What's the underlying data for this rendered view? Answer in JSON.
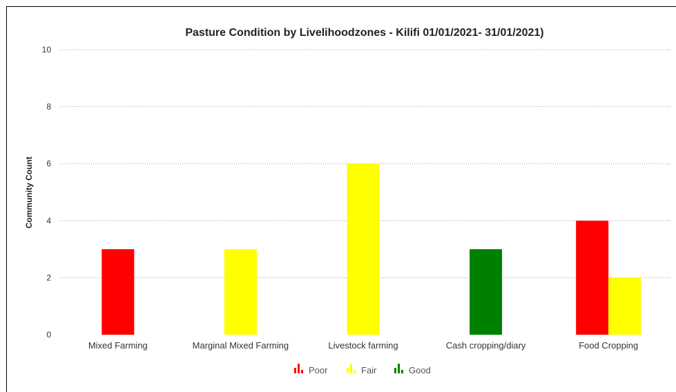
{
  "chart_data": {
    "type": "bar",
    "title": "Pasture Condition by Livelihoodzones - Kilifi 01/01/2021- 31/01/2021)",
    "xlabel": "",
    "ylabel": "Community Count",
    "ylim": [
      0,
      10
    ],
    "yticks": [
      0,
      2,
      4,
      6,
      8,
      10
    ],
    "grid": true,
    "legend_position": "bottom-center",
    "categories": [
      "Mixed Farming",
      "Marginal Mixed Farming",
      "Livestock farming",
      "Cash cropping/diary",
      "Food Cropping"
    ],
    "series": [
      {
        "name": "Poor",
        "color": "#ff0000",
        "values": [
          3,
          0,
          0,
          0,
          4
        ]
      },
      {
        "name": "Fair",
        "color": "#ffff00",
        "values": [
          0,
          3,
          6,
          0,
          2
        ]
      },
      {
        "name": "Good",
        "color": "#008000",
        "values": [
          0,
          0,
          0,
          3,
          0
        ]
      }
    ]
  }
}
